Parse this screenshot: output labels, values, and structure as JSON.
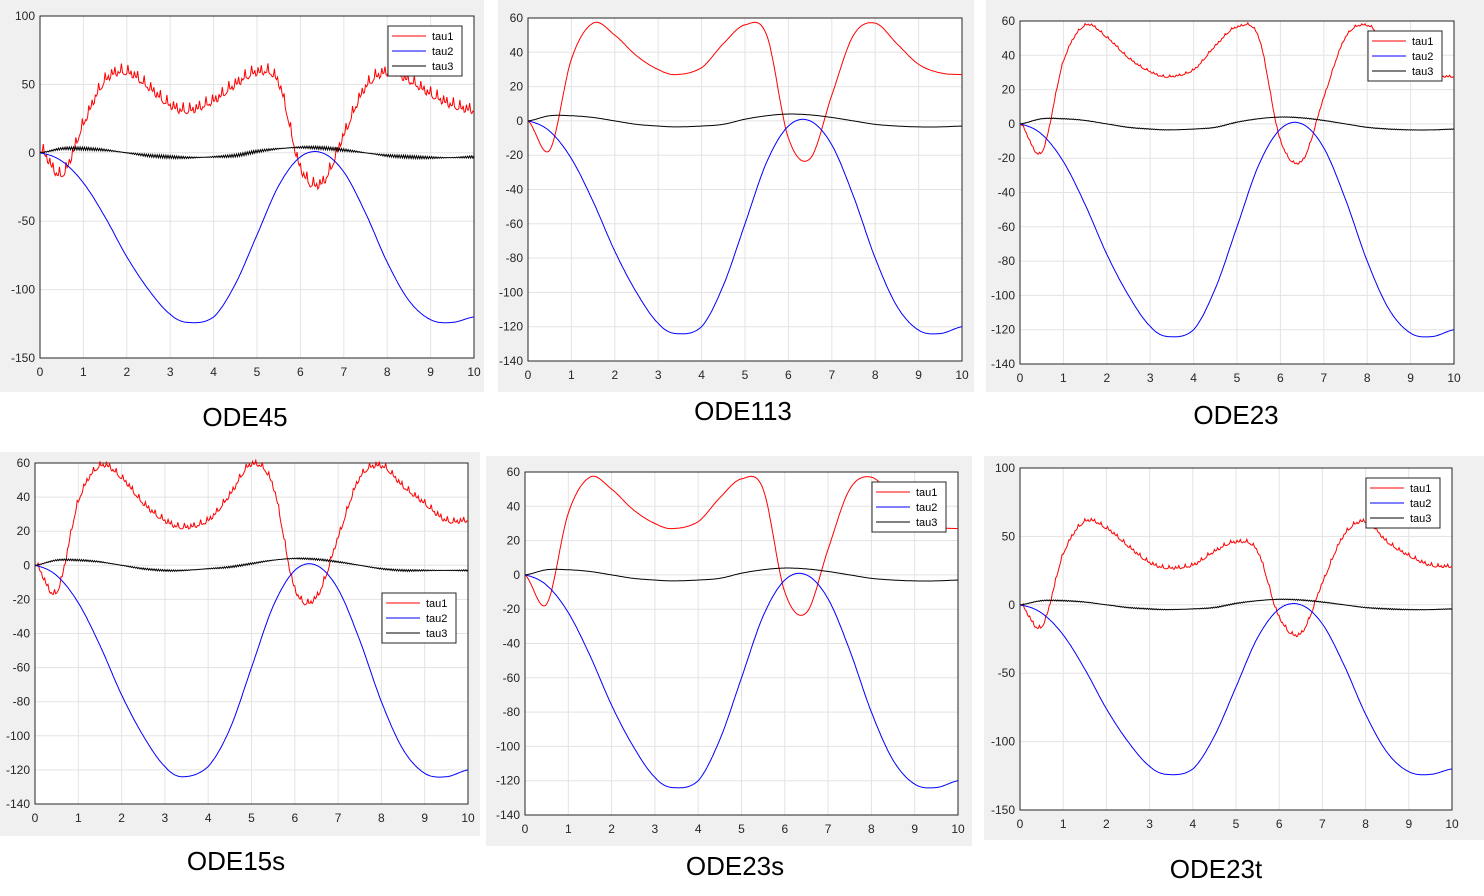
{
  "chart_data": [
    {
      "type": "line",
      "caption": "ODE45",
      "xlim": [
        0,
        10
      ],
      "ylim": [
        -150,
        100
      ],
      "xticks": [
        0,
        1,
        2,
        3,
        4,
        5,
        6,
        7,
        8,
        9,
        10
      ],
      "yticks": [
        -150,
        -100,
        -50,
        0,
        50,
        100
      ],
      "grid": true,
      "legend_position": "top-right",
      "noise": 9,
      "series": [
        {
          "name": "tau1",
          "color": "#ff0000"
        },
        {
          "name": "tau2",
          "color": "#0000ff"
        },
        {
          "name": "tau3",
          "color": "#000000"
        }
      ],
      "x": [
        0,
        0.5,
        1,
        1.5,
        2,
        2.5,
        3,
        3.4,
        4,
        4.5,
        5,
        5.5,
        6,
        6.5,
        7,
        7.5,
        8,
        8.5,
        9,
        9.5,
        10
      ],
      "tau1": [
        0,
        -19,
        18,
        50,
        56,
        45,
        32,
        28,
        35,
        47,
        56,
        48,
        -14,
        -25,
        10,
        45,
        56,
        50,
        40,
        32,
        28
      ],
      "tau2": [
        0,
        -6,
        -22,
        -47,
        -76,
        -100,
        -118,
        -124,
        -120,
        -96,
        -60,
        -24,
        -3,
        0,
        -14,
        -44,
        -80,
        -108,
        -122,
        -124,
        -120
      ],
      "tau3": [
        0,
        3,
        3,
        2,
        0,
        -2,
        -3,
        -3.5,
        -3,
        -2,
        1,
        3,
        4,
        3.5,
        2,
        0,
        -2,
        -3,
        -3.5,
        -3.5,
        -3
      ]
    },
    {
      "type": "line",
      "caption": "ODE113",
      "xlim": [
        0,
        10
      ],
      "ylim": [
        -140,
        60
      ],
      "xticks": [
        0,
        1,
        2,
        3,
        4,
        5,
        6,
        7,
        8,
        9,
        10
      ],
      "yticks": [
        -140,
        -120,
        -100,
        -80,
        -60,
        -40,
        -20,
        0,
        20,
        40,
        60
      ],
      "grid": true,
      "legend_position": "none",
      "noise": 0,
      "series": [
        {
          "name": "tau1",
          "color": "#ff0000"
        },
        {
          "name": "tau2",
          "color": "#0000ff"
        },
        {
          "name": "tau3",
          "color": "#000000"
        }
      ],
      "x": [
        0,
        0.5,
        1,
        1.5,
        2,
        2.5,
        3,
        3.4,
        4,
        4.5,
        5,
        5.5,
        6,
        6.5,
        7,
        7.5,
        8,
        8.5,
        9,
        9.5,
        10
      ],
      "tau1": [
        0,
        -17,
        36,
        57,
        50,
        38,
        30,
        27,
        31,
        45,
        56,
        50,
        -10,
        -22,
        15,
        50,
        57,
        45,
        33,
        28,
        27
      ],
      "tau2": [
        0,
        -6,
        -22,
        -47,
        -76,
        -100,
        -118,
        -124,
        -120,
        -96,
        -60,
        -24,
        -3,
        0,
        -14,
        -44,
        -80,
        -108,
        -122,
        -124,
        -120
      ],
      "tau3": [
        0,
        3,
        3,
        2,
        0,
        -2,
        -3,
        -3.5,
        -3,
        -2,
        1,
        3,
        4,
        3.5,
        2,
        0,
        -2,
        -3,
        -3.5,
        -3.5,
        -3
      ]
    },
    {
      "type": "line",
      "caption": "ODE23",
      "xlim": [
        0,
        10
      ],
      "ylim": [
        -140,
        60
      ],
      "xticks": [
        0,
        1,
        2,
        3,
        4,
        5,
        6,
        7,
        8,
        9,
        10
      ],
      "yticks": [
        -140,
        -120,
        -100,
        -80,
        -60,
        -40,
        -20,
        0,
        20,
        40,
        60
      ],
      "grid": true,
      "legend_position": "top-right",
      "noise": 1.5,
      "series": [
        {
          "name": "tau1",
          "color": "#ff0000"
        },
        {
          "name": "tau2",
          "color": "#0000ff"
        },
        {
          "name": "tau3",
          "color": "#000000"
        }
      ],
      "x": [
        0,
        0.5,
        1,
        1.5,
        2,
        2.5,
        3,
        3.4,
        4,
        4.5,
        5,
        5.5,
        6,
        6.5,
        7,
        7.5,
        8,
        8.5,
        9,
        9.5,
        10
      ],
      "tau1": [
        0,
        -17,
        36,
        57,
        50,
        38,
        30,
        27,
        31,
        45,
        56,
        50,
        -10,
        -22,
        15,
        50,
        57,
        45,
        33,
        28,
        27
      ],
      "tau2": [
        0,
        -6,
        -22,
        -47,
        -76,
        -100,
        -118,
        -124,
        -120,
        -96,
        -60,
        -24,
        -3,
        0,
        -14,
        -44,
        -80,
        -108,
        -122,
        -124,
        -120
      ],
      "tau3": [
        0,
        3,
        3,
        2,
        0,
        -2,
        -3,
        -3.5,
        -3,
        -2,
        1,
        3,
        4,
        3.5,
        2,
        0,
        -2,
        -3,
        -3.5,
        -3.5,
        -3
      ]
    },
    {
      "type": "line",
      "caption": "ODE15s",
      "xlim": [
        0,
        10
      ],
      "ylim": [
        -140,
        60
      ],
      "xticks": [
        0,
        1,
        2,
        3,
        4,
        5,
        6,
        7,
        8,
        9,
        10
      ],
      "yticks": [
        -140,
        -120,
        -100,
        -80,
        -60,
        -40,
        -20,
        0,
        20,
        40,
        60
      ],
      "grid": true,
      "legend_position": "middle-right",
      "noise": 4,
      "series": [
        {
          "name": "tau1",
          "color": "#ff0000"
        },
        {
          "name": "tau2",
          "color": "#0000ff"
        },
        {
          "name": "tau3",
          "color": "#000000"
        }
      ],
      "x": [
        0,
        0.5,
        1,
        1.5,
        2,
        2.5,
        3,
        3.4,
        4,
        4.5,
        5,
        5.5,
        6,
        6.5,
        7,
        7.5,
        8,
        8.5,
        9,
        9.5,
        10
      ],
      "tau1": [
        0,
        -17,
        36,
        57,
        50,
        35,
        25,
        21,
        25,
        40,
        58,
        45,
        -15,
        -20,
        15,
        50,
        57,
        45,
        35,
        25,
        25
      ],
      "tau2": [
        0,
        -6,
        -22,
        -47,
        -76,
        -100,
        -118,
        -124,
        -118,
        -96,
        -60,
        -24,
        -3,
        0,
        -14,
        -44,
        -80,
        -108,
        -122,
        -124,
        -120
      ],
      "tau3": [
        0,
        3,
        3,
        2,
        0,
        -2,
        -3,
        -3,
        -2,
        -1,
        1,
        3,
        4,
        3.5,
        2,
        0,
        -2,
        -3,
        -3,
        -3,
        -3
      ]
    },
    {
      "type": "line",
      "caption": "ODE23s",
      "xlim": [
        0,
        10
      ],
      "ylim": [
        -140,
        60
      ],
      "xticks": [
        0,
        1,
        2,
        3,
        4,
        5,
        6,
        7,
        8,
        9,
        10
      ],
      "yticks": [
        -140,
        -120,
        -100,
        -80,
        -60,
        -40,
        -20,
        0,
        20,
        40,
        60
      ],
      "grid": true,
      "legend_position": "top-right",
      "noise": 0,
      "series": [
        {
          "name": "tau1",
          "color": "#ff0000"
        },
        {
          "name": "tau2",
          "color": "#0000ff"
        },
        {
          "name": "tau3",
          "color": "#000000"
        }
      ],
      "x": [
        0,
        0.5,
        1,
        1.5,
        2,
        2.5,
        3,
        3.4,
        4,
        4.5,
        5,
        5.5,
        6,
        6.5,
        7,
        7.5,
        8,
        8.5,
        9,
        9.5,
        10
      ],
      "tau1": [
        0,
        -17,
        36,
        57,
        50,
        38,
        30,
        27,
        31,
        45,
        56,
        50,
        -10,
        -22,
        15,
        50,
        57,
        45,
        33,
        28,
        27
      ],
      "tau2": [
        0,
        -6,
        -22,
        -47,
        -76,
        -100,
        -118,
        -124,
        -120,
        -96,
        -60,
        -24,
        -3,
        0,
        -14,
        -44,
        -80,
        -108,
        -122,
        -124,
        -120
      ],
      "tau3": [
        0,
        3,
        3,
        2,
        0,
        -2,
        -3,
        -3.5,
        -3,
        -2,
        1,
        3,
        4,
        3.5,
        2,
        0,
        -2,
        -3,
        -3.5,
        -3.5,
        -3
      ]
    },
    {
      "type": "line",
      "caption": "ODE23t",
      "xlim": [
        0,
        10
      ],
      "ylim": [
        -150,
        100
      ],
      "xticks": [
        0,
        1,
        2,
        3,
        4,
        5,
        6,
        7,
        8,
        9,
        10
      ],
      "yticks": [
        -150,
        -100,
        -50,
        0,
        50,
        100
      ],
      "grid": true,
      "legend_position": "top-right",
      "noise": 3,
      "series": [
        {
          "name": "tau1",
          "color": "#ff0000"
        },
        {
          "name": "tau2",
          "color": "#0000ff"
        },
        {
          "name": "tau3",
          "color": "#000000"
        }
      ],
      "x": [
        0,
        0.5,
        1,
        1.5,
        2,
        2.5,
        3,
        3.4,
        4,
        4.5,
        5,
        5.5,
        6,
        6.5,
        7,
        7.5,
        8,
        8.5,
        9,
        9.5,
        10
      ],
      "tau1": [
        0,
        -17,
        36,
        60,
        55,
        42,
        30,
        26,
        28,
        38,
        45,
        38,
        -10,
        -22,
        15,
        50,
        60,
        45,
        35,
        28,
        27
      ],
      "tau2": [
        0,
        -6,
        -22,
        -47,
        -76,
        -100,
        -118,
        -124,
        -120,
        -96,
        -60,
        -24,
        -3,
        0,
        -14,
        -44,
        -80,
        -108,
        -122,
        -124,
        -120
      ],
      "tau3": [
        0,
        3,
        3,
        2,
        0,
        -2,
        -3,
        -3.5,
        -3,
        -2,
        1,
        3,
        4,
        3.5,
        2,
        0,
        -2,
        -3,
        -3.5,
        -3.5,
        -3
      ]
    }
  ]
}
